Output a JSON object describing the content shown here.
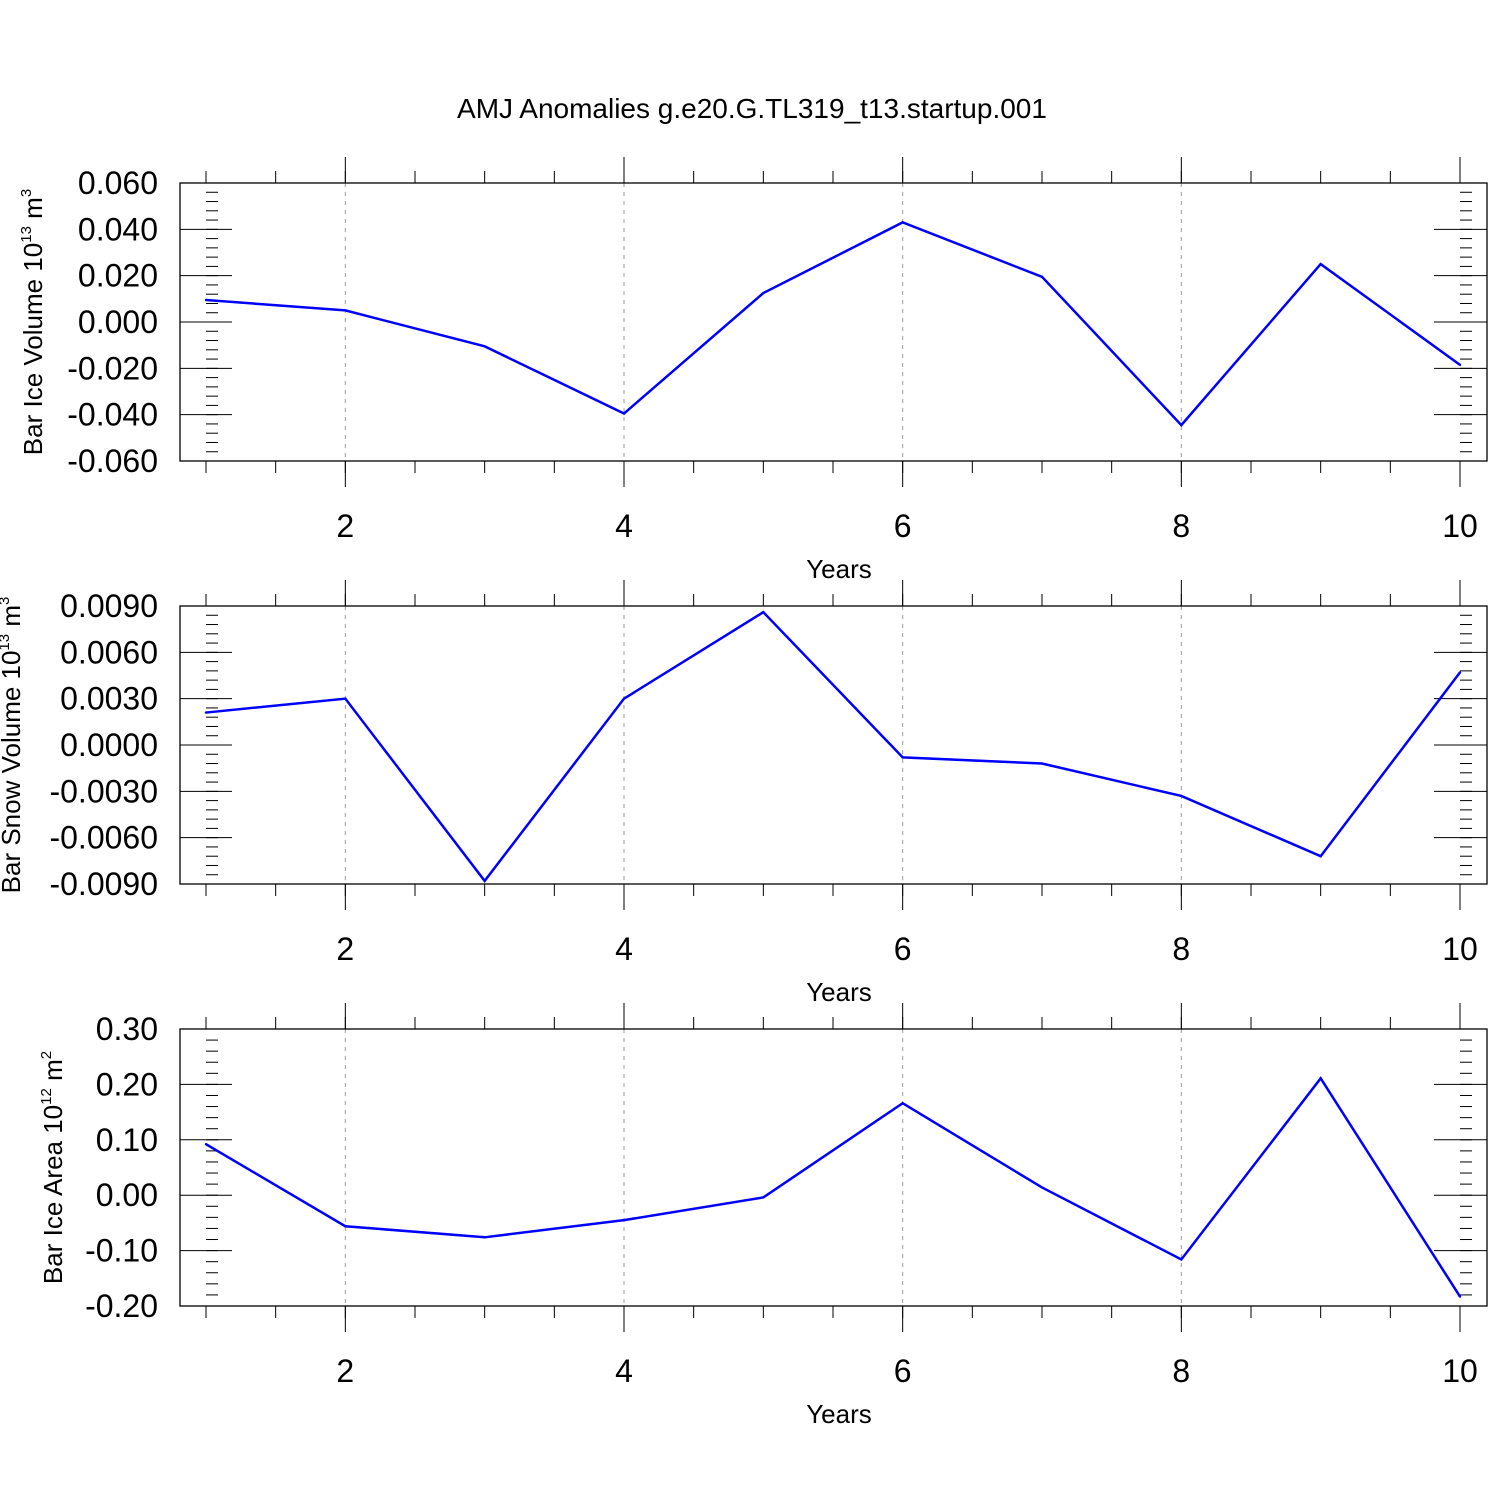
{
  "title": "AMJ Anomalies g.e20.G.TL319_t13.startup.001",
  "chart_data": [
    {
      "type": "line",
      "xlabel": "Years",
      "ylabel": {
        "main": "Bar Ice Volume 10",
        "exp": "13",
        "unit": " m",
        "unit_exp": "3"
      },
      "xlim": [
        1,
        10
      ],
      "ylim": [
        -0.06,
        0.06
      ],
      "xticks": [
        2,
        4,
        6,
        8,
        10
      ],
      "yticks": [
        -0.06,
        -0.04,
        -0.02,
        0.0,
        0.02,
        0.04,
        0.06
      ],
      "ytick_labels": [
        "-0.060",
        "-0.040",
        "-0.020",
        "0.000",
        "0.020",
        "0.040",
        "0.060"
      ],
      "grid": "x-major-dashed",
      "color": "#0000ff",
      "x": [
        1,
        2,
        3,
        4,
        5,
        6,
        7,
        8,
        9,
        10
      ],
      "y": [
        0.0095,
        0.005,
        -0.0105,
        -0.0395,
        0.0125,
        0.043,
        0.0195,
        -0.0445,
        0.025,
        -0.0185
      ]
    },
    {
      "type": "line",
      "xlabel": "Years",
      "ylabel": {
        "main": "Bar Snow Volume 10",
        "exp": "13",
        "unit": " m",
        "unit_exp": "3"
      },
      "xlim": [
        1,
        10
      ],
      "ylim": [
        -0.009,
        0.009
      ],
      "xticks": [
        2,
        4,
        6,
        8,
        10
      ],
      "yticks": [
        -0.009,
        -0.006,
        -0.003,
        0.0,
        0.003,
        0.006,
        0.009
      ],
      "ytick_labels": [
        "-0.0090",
        "-0.0060",
        "-0.0030",
        "0.0000",
        "0.0030",
        "0.0060",
        "0.0090"
      ],
      "grid": "x-major-dashed",
      "color": "#0000ff",
      "x": [
        1,
        2,
        3,
        4,
        5,
        6,
        7,
        8,
        9,
        10
      ],
      "y": [
        0.0021,
        0.003,
        -0.0088,
        0.003,
        0.0086,
        -0.0008,
        -0.0012,
        -0.0033,
        -0.0072,
        0.0047
      ]
    },
    {
      "type": "line",
      "xlabel": "Years",
      "ylabel": {
        "main": "Bar Ice Area 10",
        "exp": "12",
        "unit": " m",
        "unit_exp": "2"
      },
      "xlim": [
        1,
        10
      ],
      "ylim": [
        -0.2,
        0.3
      ],
      "xticks": [
        2,
        4,
        6,
        8,
        10
      ],
      "yticks": [
        -0.2,
        -0.1,
        0.0,
        0.1,
        0.2,
        0.3
      ],
      "ytick_labels": [
        "-0.20",
        "-0.10",
        "0.00",
        "0.10",
        "0.20",
        "0.30"
      ],
      "grid": "x-major-dashed",
      "color": "#0000ff",
      "x": [
        1,
        2,
        3,
        4,
        5,
        6,
        7,
        8,
        9,
        10
      ],
      "y": [
        0.092,
        -0.056,
        -0.076,
        -0.045,
        -0.004,
        0.166,
        0.014,
        -0.116,
        0.211,
        -0.183
      ]
    }
  ]
}
